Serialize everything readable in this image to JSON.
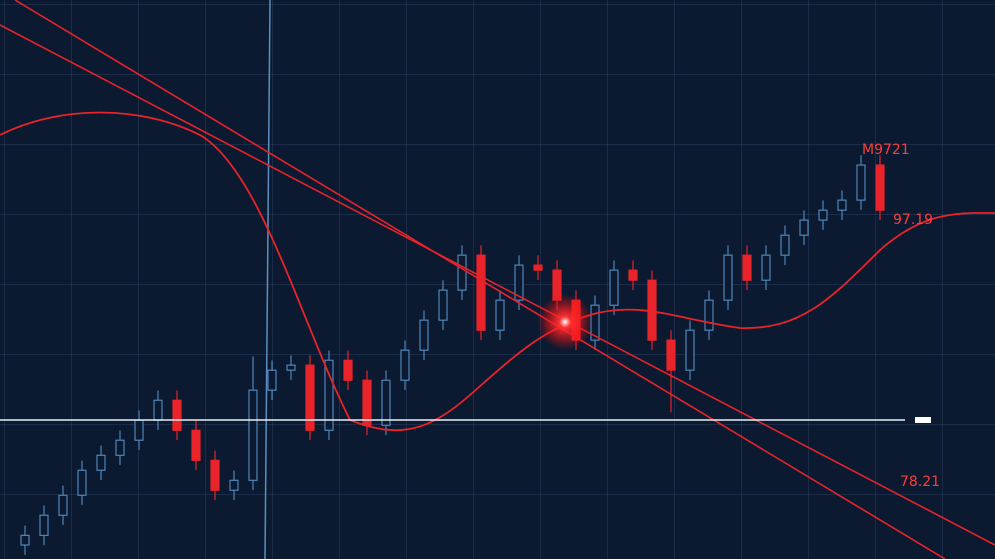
{
  "chart_data": {
    "type": "candlestick",
    "categories": [
      null,
      null,
      null,
      null,
      null,
      null,
      null,
      null,
      null,
      null,
      null,
      null,
      null,
      null,
      null,
      null,
      null,
      null,
      null,
      null,
      null,
      null,
      null,
      null,
      null,
      null,
      null,
      null,
      null,
      null,
      null,
      null,
      null,
      null,
      null,
      null,
      null,
      null,
      null,
      null,
      null,
      null,
      null,
      null,
      null,
      null
    ],
    "open": [
      71.0,
      71.69,
      73.13,
      74.56,
      76.35,
      77.42,
      78.5,
      79.93,
      81.36,
      79.21,
      77.06,
      74.92,
      75.63,
      82.08,
      83.51,
      83.87,
      79.21,
      84.22,
      82.79,
      79.57,
      82.79,
      84.94,
      87.09,
      89.24,
      91.74,
      86.37,
      88.52,
      91.03,
      90.67,
      88.52,
      85.66,
      88.16,
      90.67,
      89.95,
      85.66,
      83.51,
      86.37,
      88.52,
      91.74,
      89.95,
      91.74,
      93.17,
      94.25,
      94.96,
      95.68,
      98.19
    ],
    "high": [
      72.39,
      73.83,
      75.26,
      77.05,
      78.12,
      79.2,
      80.63,
      82.06,
      82.06,
      79.91,
      77.76,
      76.33,
      84.5,
      84.21,
      84.57,
      84.57,
      84.92,
      84.92,
      83.49,
      83.49,
      85.64,
      87.79,
      89.94,
      92.44,
      92.44,
      89.22,
      91.73,
      91.73,
      91.37,
      89.22,
      88.86,
      91.37,
      91.37,
      90.65,
      86.36,
      87.07,
      89.22,
      92.44,
      92.44,
      92.44,
      93.87,
      94.95,
      95.66,
      96.38,
      98.89,
      98.89
    ],
    "low": [
      70.3,
      70.99,
      72.43,
      73.86,
      75.65,
      76.72,
      77.8,
      79.23,
      78.51,
      76.36,
      74.22,
      74.22,
      74.93,
      81.38,
      82.81,
      78.51,
      78.51,
      82.09,
      78.87,
      78.87,
      82.09,
      84.24,
      86.39,
      88.54,
      85.67,
      85.67,
      87.82,
      89.97,
      87.82,
      84.96,
      84.96,
      87.46,
      89.25,
      84.96,
      80.5,
      82.81,
      85.67,
      87.82,
      89.25,
      89.25,
      91.04,
      92.47,
      93.55,
      94.26,
      94.98,
      94.26
    ],
    "close": [
      71.69,
      73.13,
      74.56,
      76.35,
      77.42,
      78.5,
      79.93,
      81.36,
      79.21,
      77.06,
      74.92,
      75.63,
      82.08,
      83.51,
      83.87,
      79.21,
      84.22,
      82.79,
      79.57,
      82.79,
      84.94,
      87.09,
      89.24,
      91.74,
      86.37,
      88.52,
      91.03,
      90.67,
      88.52,
      85.66,
      88.16,
      90.67,
      89.95,
      85.66,
      83.51,
      86.37,
      88.52,
      91.74,
      89.95,
      91.74,
      93.17,
      94.25,
      94.96,
      95.68,
      98.19,
      94.96
    ],
    "up_color": "#4f86b8",
    "down_color": "#e8232a",
    "ylim": [
      70,
      110
    ],
    "grid": true,
    "annotations": [
      "M9721",
      "97.19",
      "78.21"
    ]
  }
}
